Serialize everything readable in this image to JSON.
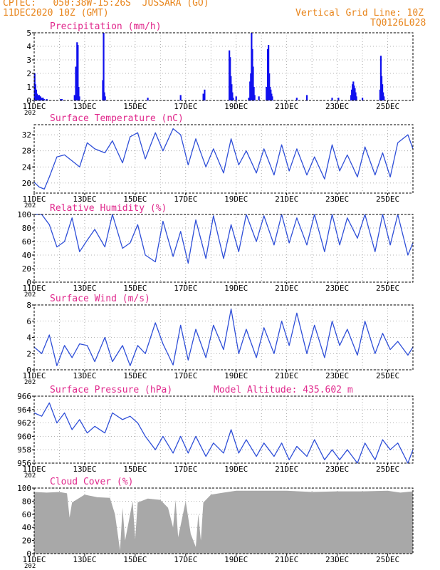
{
  "header": {
    "line1": "CPTEC:   050:38W-15:26S  JUSSARA (GO)",
    "line2": "11DEC2020 10Z (GMT)",
    "grid_note": "Vertical Grid Line: 10Z",
    "model_code": "TQ0126L028"
  },
  "colors": {
    "title": "#e0288c",
    "header": "#e8851c",
    "line": "#2f4fd8",
    "bar": "#1010ee",
    "cloud": "#a8a8a8",
    "grid": "#9a9a9a"
  },
  "date_ticks": [
    "11DEC",
    "13DEC",
    "15DEC",
    "17DEC",
    "19DEC",
    "21DEC",
    "23DEC",
    "25DEC"
  ],
  "year_stub": "202",
  "chart_data": [
    {
      "type": "bar",
      "title": "Precipitation (mm/h)",
      "ylim": [
        0,
        5
      ],
      "yticks": [
        0,
        1,
        2,
        3,
        4,
        5
      ],
      "x_unit": "days since 11DEC 10Z",
      "x": [
        0.02,
        0.05,
        0.08,
        0.11,
        0.14,
        0.17,
        0.2,
        0.25,
        0.3,
        0.35,
        0.4,
        0.5,
        1.05,
        1.1,
        1.6,
        1.65,
        1.7,
        1.73,
        1.76,
        1.79,
        2.72,
        2.75,
        2.78,
        2.81,
        4.5,
        5.8,
        6.7,
        6.75,
        7.73,
        7.76,
        7.79,
        7.82,
        7.85,
        7.88,
        8.0,
        8.5,
        8.55,
        8.58,
        8.61,
        8.64,
        8.67,
        8.7,
        8.73,
        8.9,
        9.2,
        9.25,
        9.28,
        9.31,
        9.34,
        9.37,
        9.4,
        9.43,
        10.4,
        10.8,
        11.8,
        12.05,
        12.55,
        12.58,
        12.61,
        12.64,
        12.67,
        12.7,
        12.73,
        12.76,
        13.0,
        13.7,
        13.73,
        13.76,
        13.79,
        13.82,
        13.85
      ],
      "values": [
        2.0,
        1.2,
        0.8,
        0.5,
        0.4,
        0.3,
        0.4,
        0.3,
        0.2,
        0.2,
        0.1,
        0.1,
        0.1,
        0.1,
        0.4,
        2.5,
        4.3,
        4.1,
        1.0,
        0.3,
        1.5,
        5.0,
        0.6,
        0.3,
        0.2,
        0.4,
        0.5,
        0.8,
        3.7,
        3.2,
        1.8,
        1.2,
        0.6,
        0.2,
        0.3,
        0.2,
        1.4,
        2.0,
        5.0,
        3.8,
        2.5,
        1.0,
        0.4,
        0.3,
        1.0,
        3.8,
        4.1,
        2.0,
        1.0,
        0.8,
        0.5,
        0.3,
        0.2,
        0.4,
        0.2,
        0.2,
        0.4,
        0.8,
        1.2,
        1.4,
        1.1,
        0.9,
        0.6,
        0.3,
        0.2,
        0.8,
        3.3,
        1.8,
        1.2,
        0.6,
        0.3
      ]
    },
    {
      "type": "line",
      "title": "Surface Temperature (nC)",
      "ylim": [
        17.5,
        34.5
      ],
      "yticks": [
        20,
        24,
        28,
        32
      ],
      "x": [
        0,
        0.2,
        0.4,
        0.6,
        0.9,
        1.2,
        1.5,
        1.8,
        2.1,
        2.4,
        2.8,
        3.1,
        3.5,
        3.8,
        4.1,
        4.4,
        4.8,
        5.1,
        5.5,
        5.8,
        6.1,
        6.4,
        6.8,
        7.1,
        7.5,
        7.8,
        8.1,
        8.4,
        8.8,
        9.1,
        9.5,
        9.8,
        10.1,
        10.4,
        10.8,
        11.1,
        11.5,
        11.8,
        12.1,
        12.4,
        12.8,
        13.1,
        13.5,
        13.8,
        14.1,
        14.4,
        14.8,
        15.0
      ],
      "values": [
        20.2,
        19.0,
        18.5,
        21.5,
        26.5,
        27.0,
        25.5,
        24.0,
        30.0,
        28.5,
        27.5,
        30.5,
        25.0,
        31.5,
        32.5,
        26.0,
        32.5,
        28.0,
        33.5,
        32.0,
        24.5,
        31.0,
        24.0,
        28.5,
        22.5,
        31.0,
        24.5,
        28.0,
        22.5,
        28.5,
        22.0,
        29.5,
        23.0,
        28.5,
        22.0,
        26.5,
        21.0,
        29.5,
        23.0,
        27.0,
        21.5,
        29.0,
        22.0,
        27.5,
        21.5,
        30.0,
        32.0,
        28.5
      ]
    },
    {
      "type": "line",
      "title": "Relative Humidity (%)",
      "ylim": [
        0,
        100
      ],
      "yticks": [
        0,
        20,
        40,
        60,
        80,
        100
      ],
      "x": [
        0,
        0.3,
        0.6,
        0.9,
        1.2,
        1.5,
        1.8,
        2.1,
        2.4,
        2.8,
        3.1,
        3.5,
        3.8,
        4.1,
        4.4,
        4.8,
        5.1,
        5.5,
        5.8,
        6.1,
        6.4,
        6.8,
        7.1,
        7.5,
        7.8,
        8.1,
        8.4,
        8.8,
        9.1,
        9.5,
        9.8,
        10.1,
        10.4,
        10.8,
        11.1,
        11.5,
        11.8,
        12.1,
        12.4,
        12.8,
        13.1,
        13.5,
        13.8,
        14.1,
        14.4,
        14.8,
        15.0
      ],
      "values": [
        100,
        100,
        85,
        52,
        60,
        95,
        45,
        62,
        78,
        52,
        100,
        50,
        58,
        85,
        40,
        30,
        90,
        38,
        75,
        28,
        92,
        35,
        98,
        35,
        85,
        45,
        100,
        60,
        98,
        55,
        100,
        58,
        95,
        55,
        100,
        45,
        100,
        55,
        95,
        65,
        100,
        45,
        100,
        55,
        100,
        40,
        58
      ]
    },
    {
      "type": "line",
      "title": "Surface Wind (m/s)",
      "ylim": [
        0,
        8
      ],
      "yticks": [
        0,
        2,
        4,
        6,
        8
      ],
      "x": [
        0,
        0.3,
        0.6,
        0.9,
        1.2,
        1.5,
        1.8,
        2.1,
        2.4,
        2.8,
        3.1,
        3.5,
        3.8,
        4.1,
        4.4,
        4.8,
        5.1,
        5.5,
        5.8,
        6.1,
        6.4,
        6.8,
        7.1,
        7.5,
        7.8,
        8.1,
        8.4,
        8.8,
        9.1,
        9.5,
        9.8,
        10.1,
        10.4,
        10.8,
        11.1,
        11.5,
        11.8,
        12.1,
        12.4,
        12.8,
        13.1,
        13.5,
        13.8,
        14.1,
        14.4,
        14.8,
        15.0
      ],
      "values": [
        2.8,
        2.0,
        4.3,
        0.5,
        3.0,
        1.5,
        3.2,
        3.0,
        1.0,
        4.0,
        1.0,
        3.0,
        0.5,
        3.0,
        2.0,
        5.8,
        3.2,
        0.6,
        5.5,
        1.2,
        5.0,
        1.5,
        5.5,
        2.5,
        7.5,
        2.0,
        5.0,
        1.5,
        5.2,
        2.0,
        6.0,
        3.0,
        7.0,
        2.0,
        5.5,
        1.5,
        6.0,
        3.0,
        5.0,
        1.8,
        6.0,
        2.0,
        4.5,
        2.5,
        3.5,
        1.8,
        2.8
      ]
    },
    {
      "type": "line",
      "title": "Surface Pressure (hPa)",
      "annotation": "Model Altitude: 435.602 m",
      "ylim": [
        956,
        966
      ],
      "yticks": [
        956,
        958,
        960,
        962,
        964,
        966
      ],
      "x": [
        0,
        0.3,
        0.6,
        0.9,
        1.2,
        1.5,
        1.8,
        2.1,
        2.4,
        2.8,
        3.1,
        3.5,
        3.8,
        4.1,
        4.4,
        4.8,
        5.1,
        5.5,
        5.8,
        6.1,
        6.4,
        6.8,
        7.1,
        7.5,
        7.8,
        8.1,
        8.4,
        8.8,
        9.1,
        9.5,
        9.8,
        10.1,
        10.4,
        10.8,
        11.1,
        11.5,
        11.8,
        12.1,
        12.4,
        12.8,
        13.1,
        13.5,
        13.8,
        14.1,
        14.4,
        14.8,
        15.0
      ],
      "values": [
        963.5,
        963.0,
        965.0,
        962.0,
        963.5,
        961.0,
        962.5,
        960.5,
        961.5,
        960.5,
        963.5,
        962.5,
        963.0,
        962.0,
        960.0,
        958.0,
        960.0,
        957.5,
        960.0,
        957.5,
        960.0,
        957.0,
        959.0,
        957.5,
        961.0,
        957.5,
        959.5,
        957.0,
        959.0,
        957.0,
        959.0,
        956.5,
        958.5,
        957.0,
        959.5,
        956.5,
        958.0,
        956.5,
        958.0,
        956.0,
        959.0,
        956.5,
        959.5,
        958.0,
        959.0,
        956.0,
        958.0
      ]
    },
    {
      "type": "area",
      "title": "Cloud Cover (%)",
      "ylim": [
        0,
        100
      ],
      "yticks": [
        0,
        20,
        40,
        60,
        80,
        100
      ],
      "x": [
        0,
        0.5,
        1.0,
        1.3,
        1.4,
        1.5,
        2.0,
        2.5,
        3.0,
        3.2,
        3.4,
        3.5,
        3.6,
        3.9,
        4.0,
        4.1,
        4.5,
        5.0,
        5.3,
        5.5,
        5.6,
        5.7,
        6.0,
        6.2,
        6.4,
        6.5,
        6.6,
        6.7,
        7.0,
        7.5,
        8.0,
        9.0,
        10.0,
        11.0,
        12.0,
        13.0,
        14.0,
        14.5,
        15.0
      ],
      "values": [
        94,
        93,
        94,
        92,
        55,
        78,
        90,
        86,
        85,
        60,
        5,
        70,
        20,
        80,
        22,
        78,
        84,
        82,
        70,
        40,
        82,
        25,
        80,
        30,
        10,
        60,
        20,
        78,
        90,
        93,
        96,
        96,
        96,
        94,
        95,
        95,
        96,
        93,
        95
      ]
    }
  ]
}
